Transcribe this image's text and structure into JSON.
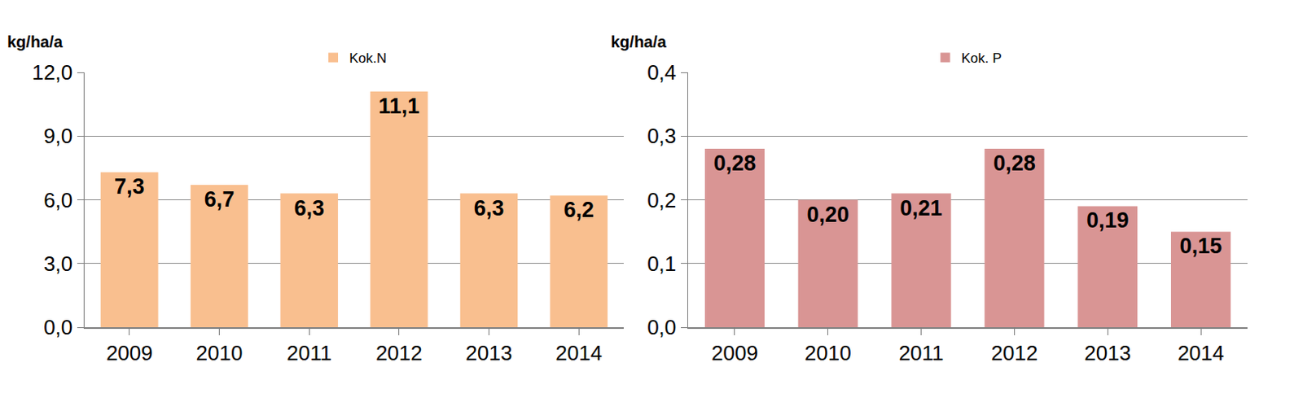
{
  "chart_data": [
    {
      "type": "bar",
      "y_label": "kg/ha/a",
      "categories": [
        "2009",
        "2010",
        "2011",
        "2012",
        "2013",
        "2014"
      ],
      "series": [
        {
          "name": "Kok.N",
          "color": "#f9bf8f",
          "values": [
            7.3,
            6.7,
            6.3,
            11.1,
            6.3,
            6.2
          ],
          "value_labels": [
            "7,3",
            "6,7",
            "6,3",
            "11,1",
            "6,3",
            "6,2"
          ]
        }
      ],
      "ylim": [
        0,
        12
      ],
      "yticks": [
        {
          "value": 0,
          "label": "0,0"
        },
        {
          "value": 3,
          "label": "3,0"
        },
        {
          "value": 6,
          "label": "6,0"
        },
        {
          "value": 9,
          "label": "9,0"
        },
        {
          "value": 12,
          "label": "12,0"
        }
      ],
      "grid": true,
      "data_labels": true,
      "legend": "top"
    },
    {
      "type": "bar",
      "y_label": "kg/ha/a",
      "categories": [
        "2009",
        "2010",
        "2011",
        "2012",
        "2013",
        "2014"
      ],
      "series": [
        {
          "name": "Kok. P",
          "color": "#d99594",
          "values": [
            0.28,
            0.2,
            0.21,
            0.28,
            0.19,
            0.15
          ],
          "value_labels": [
            "0,28",
            "0,20",
            "0,21",
            "0,28",
            "0,19",
            "0,15"
          ]
        }
      ],
      "ylim": [
        0,
        0.4
      ],
      "yticks": [
        {
          "value": 0,
          "label": "0,0"
        },
        {
          "value": 0.1,
          "label": "0,1"
        },
        {
          "value": 0.2,
          "label": "0,2"
        },
        {
          "value": 0.3,
          "label": "0,3"
        },
        {
          "value": 0.4,
          "label": "0,4"
        }
      ],
      "grid": true,
      "data_labels": true,
      "legend": "top"
    }
  ]
}
